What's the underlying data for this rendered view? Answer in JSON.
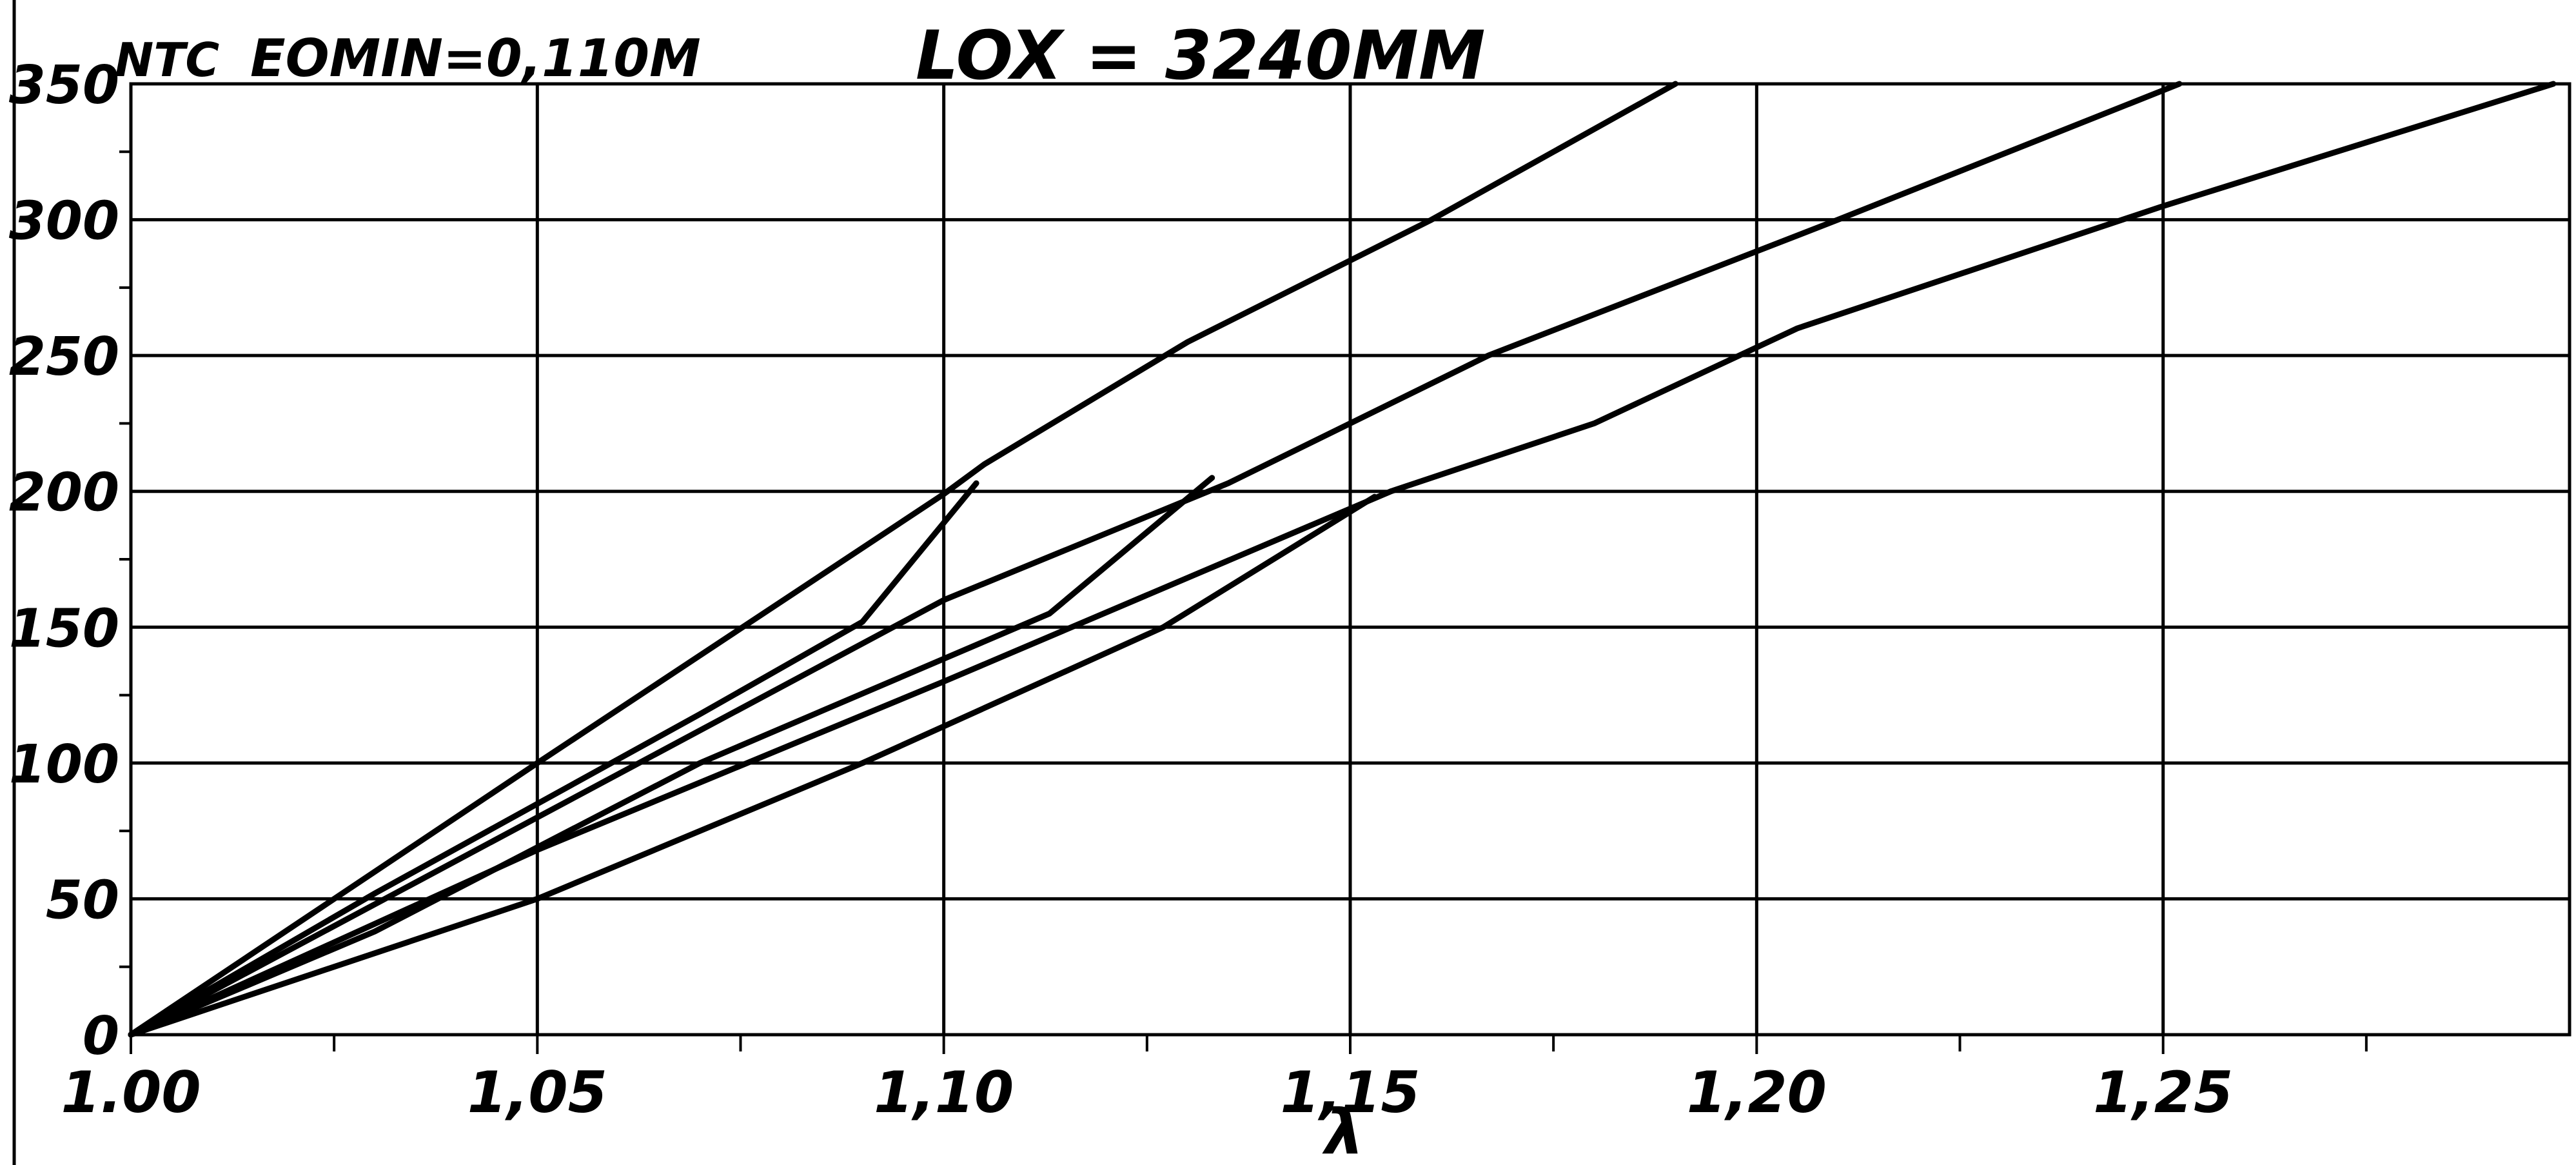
{
  "chart_data": {
    "type": "line",
    "header": {
      "left_label": "NTC",
      "param_label": "EOMIN=0,110M",
      "title": "LOX = 3240MM"
    },
    "xlabel": "λ",
    "ylabel": "",
    "xlim": [
      1.0,
      1.3
    ],
    "ylim": [
      0,
      350
    ],
    "x_ticks": [
      1.0,
      1.05,
      1.1,
      1.15,
      1.2,
      1.25
    ],
    "x_tick_labels": [
      "1.00",
      "1,05",
      "1,10",
      "1,15",
      "1,20",
      "1,25"
    ],
    "y_ticks": [
      0,
      50,
      100,
      150,
      200,
      250,
      300,
      350
    ],
    "y_tick_labels": [
      "0",
      "50",
      "100",
      "150",
      "200",
      "250",
      "300",
      "350"
    ],
    "grid": true,
    "series": [
      {
        "points": [
          [
            1.0,
            0
          ],
          [
            1.05,
            100
          ],
          [
            1.1,
            199
          ],
          [
            1.105,
            210
          ],
          [
            1.13,
            255
          ],
          [
            1.16,
            300
          ],
          [
            1.19,
            350
          ]
        ]
      },
      {
        "points": [
          [
            1.0,
            0
          ],
          [
            1.03,
            52
          ],
          [
            1.07,
            118
          ],
          [
            1.09,
            152
          ],
          [
            1.104,
            203
          ]
        ]
      },
      {
        "points": [
          [
            1.0,
            0
          ],
          [
            1.05,
            80
          ],
          [
            1.1,
            160
          ],
          [
            1.135,
            203
          ],
          [
            1.167,
            250
          ],
          [
            1.21,
            300
          ],
          [
            1.252,
            350
          ]
        ]
      },
      {
        "points": [
          [
            1.0,
            0
          ],
          [
            1.03,
            38
          ],
          [
            1.07,
            100
          ],
          [
            1.113,
            155
          ],
          [
            1.133,
            205
          ]
        ]
      },
      {
        "points": [
          [
            1.0,
            0
          ],
          [
            1.05,
            68
          ],
          [
            1.1,
            130
          ],
          [
            1.155,
            200
          ],
          [
            1.18,
            225
          ],
          [
            1.205,
            260
          ],
          [
            1.25,
            305
          ],
          [
            1.298,
            350
          ]
        ]
      },
      {
        "points": [
          [
            1.0,
            0
          ],
          [
            1.05,
            50
          ],
          [
            1.09,
            100
          ],
          [
            1.127,
            150
          ],
          [
            1.153,
            198
          ]
        ]
      }
    ]
  }
}
